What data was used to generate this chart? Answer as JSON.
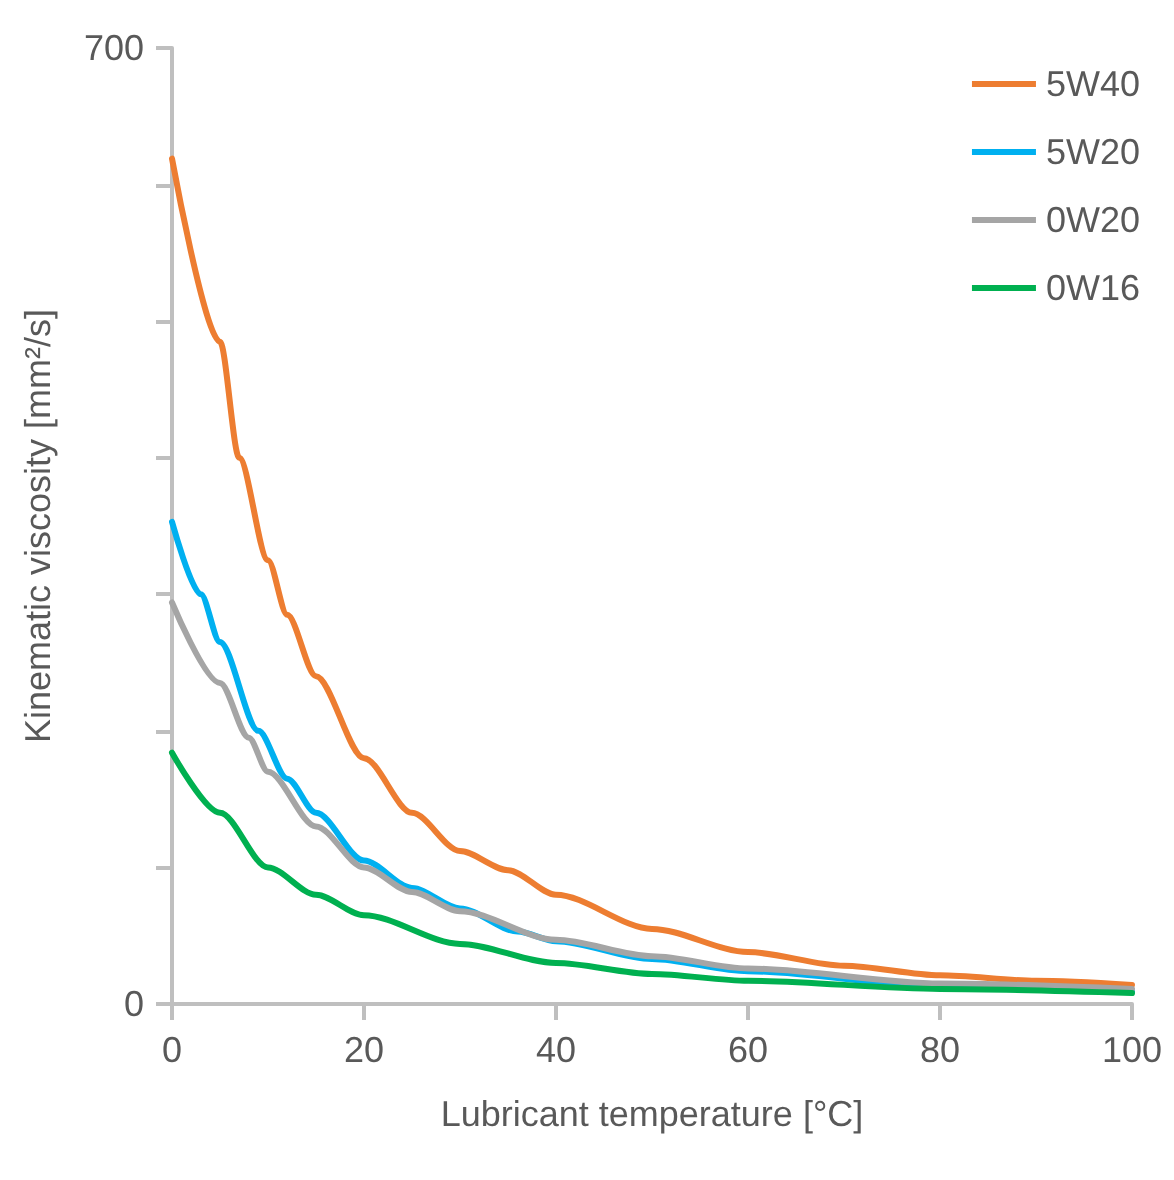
{
  "chart_data": {
    "type": "line",
    "xlabel": "Lubricant temperature [°C]",
    "ylabel": "Kinematic viscosity [mm²/s]",
    "xlim": [
      0,
      100
    ],
    "xticks": [
      0,
      20,
      40,
      60,
      80,
      100
    ],
    "ylim": [
      0,
      700
    ],
    "yticks": [
      0,
      {
        "value": 100,
        "label": null
      },
      {
        "value": 200,
        "label": null
      },
      {
        "value": 300,
        "label": null
      },
      {
        "value": 400,
        "label": null
      },
      {
        "value": 500,
        "label": null
      },
      {
        "value": 600,
        "label": null
      },
      700
    ],
    "grid": false,
    "legend": "top right",
    "marker": "none",
    "line_style": "solid",
    "series": [
      {
        "name": "5W40",
        "color": "#ed7d31",
        "x": [
          0,
          5,
          7,
          10,
          12,
          15,
          20,
          25,
          30,
          35,
          40,
          50,
          60,
          70,
          80,
          90,
          100
        ],
        "values": [
          619,
          485,
          400,
          325,
          285,
          240,
          180,
          140,
          112,
          98,
          80,
          55,
          38,
          28,
          21,
          17,
          14
        ]
      },
      {
        "name": "5W20",
        "color": "#00b0f0",
        "x": [
          0,
          3,
          5,
          9,
          12,
          15,
          20,
          25,
          30,
          36,
          40,
          50,
          60,
          80,
          100
        ],
        "values": [
          353,
          300,
          265,
          200,
          165,
          140,
          105,
          85,
          70,
          53,
          46,
          33,
          24,
          13,
          9
        ]
      },
      {
        "name": "0W20",
        "color": "#a5a5a5",
        "x": [
          0,
          5,
          8,
          10,
          15,
          20,
          25,
          30,
          40,
          50,
          60,
          80,
          100
        ],
        "values": [
          294,
          235,
          195,
          170,
          130,
          100,
          82,
          68,
          47,
          35,
          26,
          15,
          11
        ]
      },
      {
        "name": "0W16",
        "color": "#00b050",
        "x": [
          0,
          5,
          10,
          15,
          20,
          30,
          40,
          50,
          60,
          80,
          100
        ],
        "values": [
          184,
          140,
          100,
          80,
          65,
          44,
          30,
          22,
          17,
          11,
          8
        ]
      }
    ]
  }
}
